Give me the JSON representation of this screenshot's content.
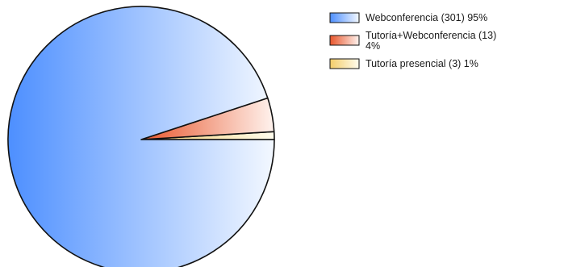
{
  "chart_data": {
    "type": "pie",
    "slices": [
      {
        "label": "Webconferencia",
        "count": 301,
        "percent": 95,
        "legend_lines": [
          "Webconferencia (301) 95%"
        ],
        "color_start": "#4d8fff",
        "color_end": "#f3f8ff"
      },
      {
        "label": "Tutoría+Webconferencia",
        "count": 13,
        "percent": 4,
        "legend_lines": [
          "Tutoría+Webconferencia (13)",
          "4%"
        ],
        "color_start": "#e8562c",
        "color_end": "#fff3ee"
      },
      {
        "label": "Tutoría presencial",
        "count": 3,
        "percent": 1,
        "legend_lines": [
          "Tutoría presencial (3) 1%"
        ],
        "color_start": "#f3cd6a",
        "color_end": "#fffcee"
      }
    ],
    "legend_position": "top-right"
  }
}
